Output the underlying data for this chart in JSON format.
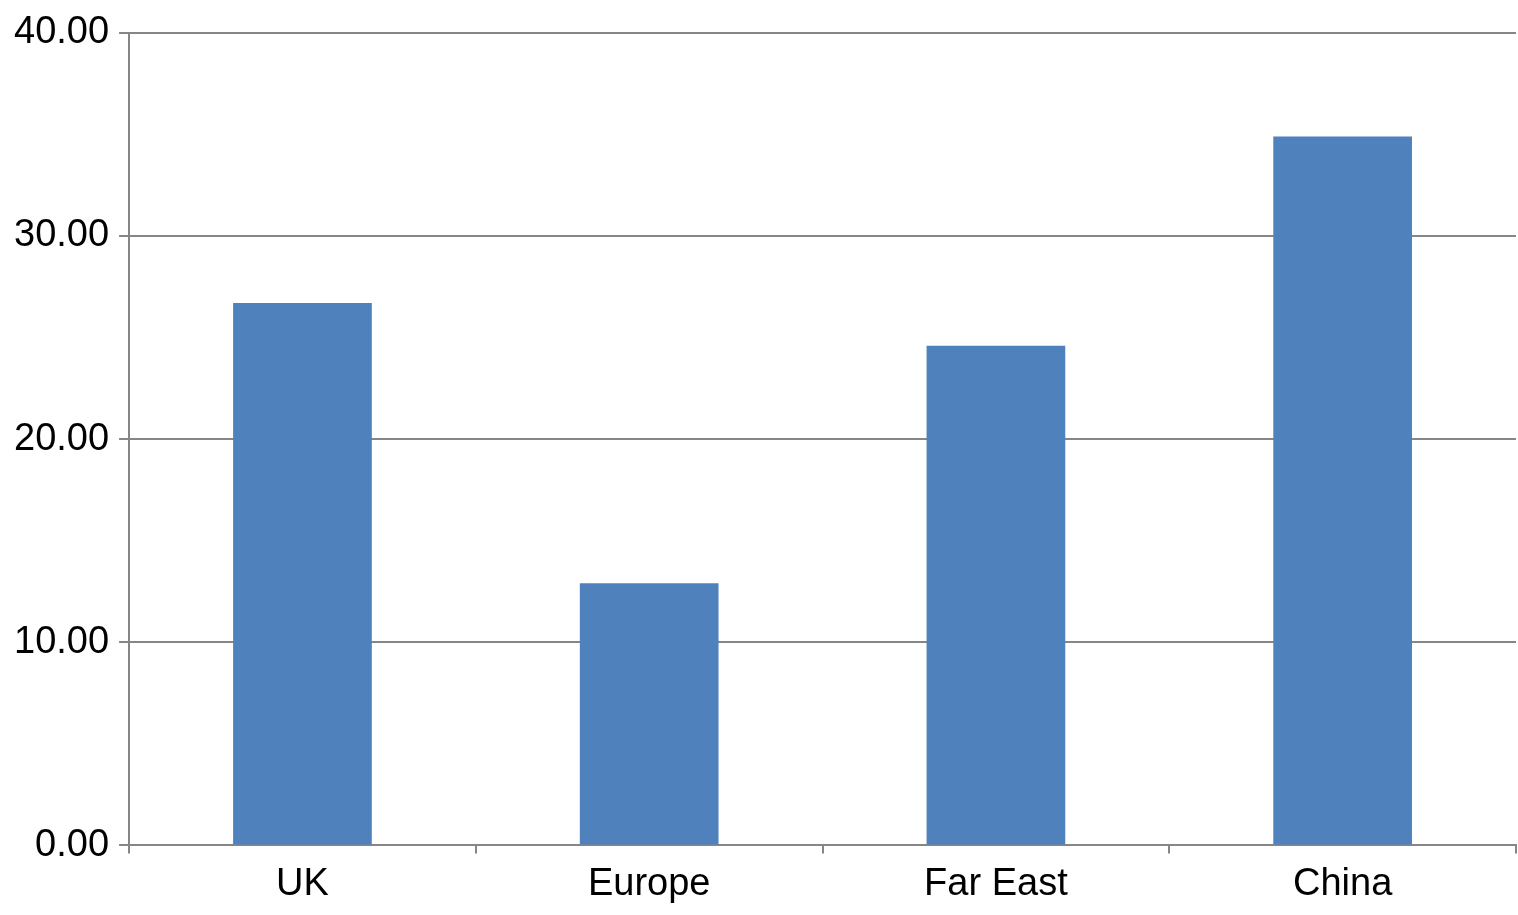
{
  "chart_data": {
    "type": "bar",
    "categories": [
      "UK",
      "Europe",
      "Far East",
      "China"
    ],
    "values": [
      26.7,
      12.9,
      24.6,
      34.9
    ],
    "color": "#4f81bd",
    "ylim": [
      0,
      40
    ],
    "yticks": [
      {
        "value": 0,
        "label": "0.00"
      },
      {
        "value": 10,
        "label": "10.00"
      },
      {
        "value": 20,
        "label": "20.00"
      },
      {
        "value": 30,
        "label": "30.00"
      },
      {
        "value": 40,
        "label": "40.00"
      }
    ],
    "grid": "y",
    "legend": false
  }
}
